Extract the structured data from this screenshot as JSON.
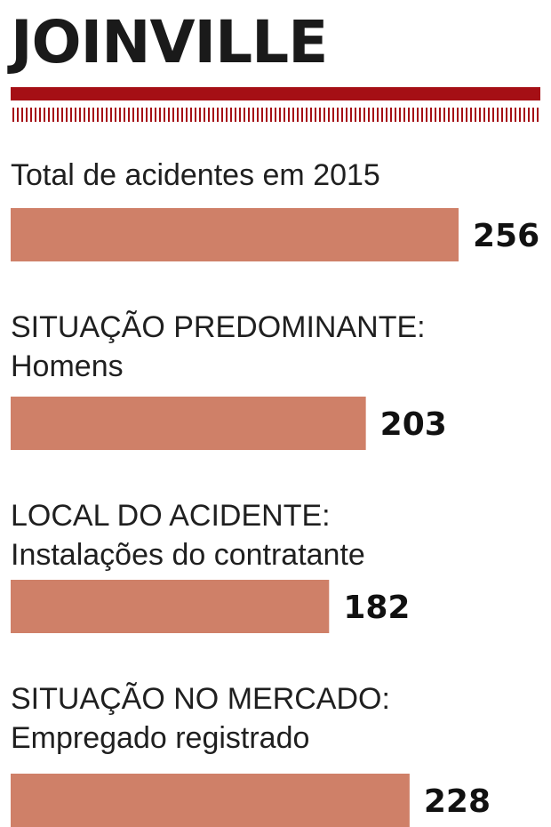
{
  "title": "JOINVILLE",
  "colors": {
    "accent": "#a50f15",
    "bar": "#cf8068",
    "text": "#1f1f1f"
  },
  "chart_data": {
    "type": "bar",
    "orientation": "horizontal",
    "items": [
      {
        "label_lines": [
          "Total de acidentes em 2015"
        ],
        "value": 256
      },
      {
        "label_lines": [
          "SITUAÇÃO PREDOMINANTE:",
          "Homens"
        ],
        "value": 203
      },
      {
        "label_lines": [
          "LOCAL DO ACIDENTE:",
          "Instalações do contratante"
        ],
        "value": 182
      },
      {
        "label_lines": [
          "SITUAÇÃO NO MERCADO:",
          "Empregado registrado"
        ],
        "value": 228
      }
    ],
    "legend": "none",
    "grid": false
  }
}
